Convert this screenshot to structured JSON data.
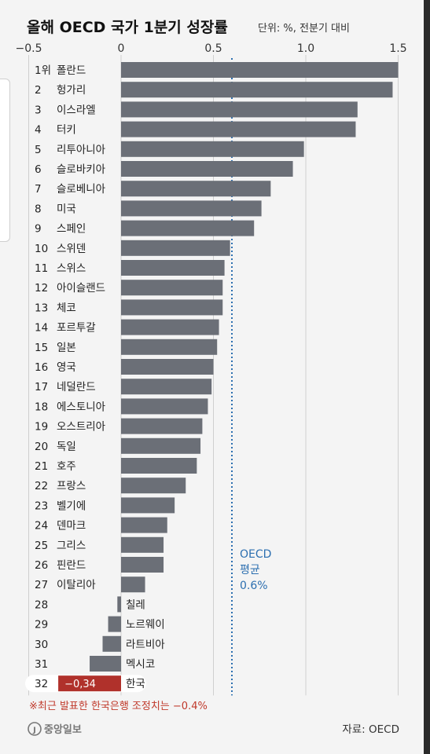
{
  "header": {
    "title": "올해 OECD 국가 1분기 성장률",
    "unit": "단위: %, 전분기 대비"
  },
  "chart_data": {
    "type": "bar",
    "orientation": "horizontal",
    "title": "올해 OECD 국가 1분기 성장률",
    "xlim": [
      -0.5,
      1.5
    ],
    "x_ticks": [
      -0.5,
      0,
      0.5,
      1.0,
      1.5
    ],
    "x_tick_labels": [
      "−0.5",
      "0",
      "0.5",
      "1.0",
      "1.5"
    ],
    "grid": "vertical",
    "ranks": [
      "1위",
      "2",
      "3",
      "4",
      "5",
      "6",
      "7",
      "8",
      "9",
      "10",
      "11",
      "12",
      "13",
      "14",
      "15",
      "16",
      "17",
      "18",
      "19",
      "20",
      "21",
      "22",
      "23",
      "24",
      "25",
      "26",
      "27",
      "28",
      "29",
      "30",
      "31",
      "32"
    ],
    "categories": [
      "폴란드",
      "헝가리",
      "이스라엘",
      "터키",
      "리투아니아",
      "슬로바키아",
      "슬로베니아",
      "미국",
      "스페인",
      "스위덴",
      "스위스",
      "아이슬랜드",
      "체코",
      "포르투갈",
      "일본",
      "영국",
      "네덜란드",
      "에스토니아",
      "오스트리아",
      "독일",
      "호주",
      "프랑스",
      "벨기에",
      "덴마크",
      "그리스",
      "핀란드",
      "이탈리아",
      "칠레",
      "노르웨이",
      "라트비아",
      "멕시코",
      "한국"
    ],
    "values": [
      1.5,
      1.47,
      1.28,
      1.27,
      0.99,
      0.93,
      0.81,
      0.76,
      0.72,
      0.59,
      0.56,
      0.55,
      0.55,
      0.53,
      0.52,
      0.5,
      0.49,
      0.47,
      0.44,
      0.43,
      0.41,
      0.35,
      0.29,
      0.25,
      0.23,
      0.23,
      0.13,
      -0.02,
      -0.07,
      -0.1,
      -0.17,
      -0.34
    ],
    "highlight_index": 31,
    "highlight_value_label": "−0,34",
    "bar_color": "#6b6f77",
    "highlight_color": "#b0312b",
    "average": {
      "value": 0.6,
      "label_lines": [
        "OECD",
        "평균",
        "0.6%"
      ],
      "color": "#2c6fb0"
    }
  },
  "footer": {
    "note": "※최근 발표한 한국은행 조정치는 −0.4%",
    "logo": "중앙일보",
    "source": "자료: OECD"
  }
}
